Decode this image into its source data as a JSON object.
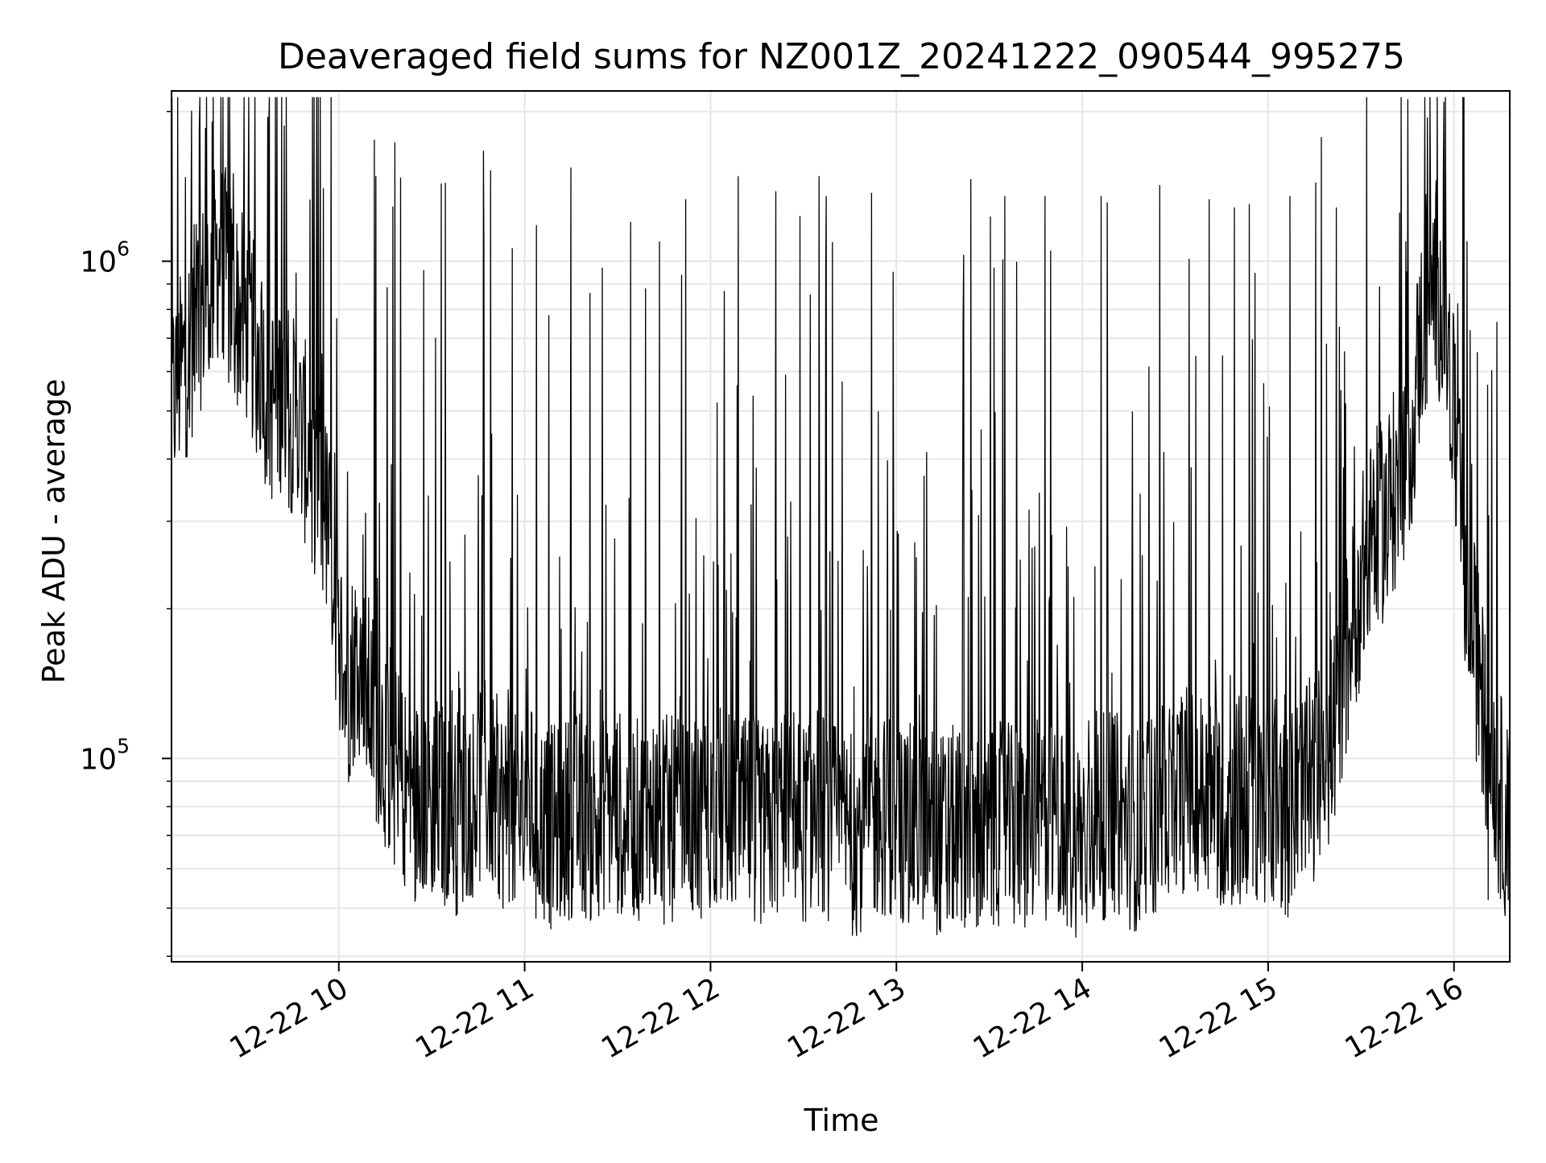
{
  "chart_data": {
    "type": "line",
    "title": "Deaveraged field sums for NZ001Z_20241222_090544_995275",
    "xlabel": "Time",
    "ylabel": "Peak ADU - average",
    "x_range": [
      "2024-12-22 09:06",
      "2024-12-22 16:18"
    ],
    "y_scale": "log",
    "y_range": [
      39000,
      2200000
    ],
    "x_ticks": [
      {
        "value": "2024-12-22 10:00",
        "label": "12-22 10"
      },
      {
        "value": "2024-12-22 11:00",
        "label": "12-22 11"
      },
      {
        "value": "2024-12-22 12:00",
        "label": "12-22 12"
      },
      {
        "value": "2024-12-22 13:00",
        "label": "12-22 13"
      },
      {
        "value": "2024-12-22 14:00",
        "label": "12-22 14"
      },
      {
        "value": "2024-12-22 15:00",
        "label": "12-22 15"
      },
      {
        "value": "2024-12-22 16:00",
        "label": "12-22 16"
      }
    ],
    "y_ticks": [
      {
        "value": 100000,
        "base": "10",
        "exp": "5"
      },
      {
        "value": 1000000,
        "base": "10",
        "exp": "6"
      }
    ],
    "grid": true,
    "line_color": "#000000",
    "grid_color": "#e6e6e6",
    "series": [
      {
        "x": [
          "2024-12-22 09:06",
          "2024-12-22 09:10",
          "2024-12-22 09:14",
          "2024-12-22 09:18",
          "2024-12-22 09:22",
          "2024-12-22 09:26",
          "2024-12-22 09:30",
          "2024-12-22 09:34",
          "2024-12-22 09:38",
          "2024-12-22 09:42",
          "2024-12-22 09:46",
          "2024-12-22 09:50",
          "2024-12-22 09:54",
          "2024-12-22 09:58",
          "2024-12-22 10:02",
          "2024-12-22 10:06",
          "2024-12-22 10:10",
          "2024-12-22 10:14",
          "2024-12-22 10:18",
          "2024-12-22 10:22",
          "2024-12-22 10:26",
          "2024-12-22 10:30",
          "2024-12-22 10:34",
          "2024-12-22 10:38",
          "2024-12-22 10:42",
          "2024-12-22 10:46",
          "2024-12-22 10:50",
          "2024-12-22 10:54",
          "2024-12-22 10:58",
          "2024-12-22 11:02",
          "2024-12-22 11:06",
          "2024-12-22 11:10",
          "2024-12-22 11:14",
          "2024-12-22 11:18",
          "2024-12-22 11:22",
          "2024-12-22 11:26",
          "2024-12-22 11:30",
          "2024-12-22 11:34",
          "2024-12-22 11:38",
          "2024-12-22 11:42",
          "2024-12-22 11:46",
          "2024-12-22 11:50",
          "2024-12-22 11:54",
          "2024-12-22 11:58",
          "2024-12-22 12:02",
          "2024-12-22 12:06",
          "2024-12-22 12:10",
          "2024-12-22 12:14",
          "2024-12-22 12:18",
          "2024-12-22 12:22",
          "2024-12-22 12:26",
          "2024-12-22 12:30",
          "2024-12-22 12:34",
          "2024-12-22 12:38",
          "2024-12-22 12:42",
          "2024-12-22 12:46",
          "2024-12-22 12:50",
          "2024-12-22 12:54",
          "2024-12-22 12:58",
          "2024-12-22 13:02",
          "2024-12-22 13:06",
          "2024-12-22 13:10",
          "2024-12-22 13:14",
          "2024-12-22 13:18",
          "2024-12-22 13:22",
          "2024-12-22 13:26",
          "2024-12-22 13:30",
          "2024-12-22 13:34",
          "2024-12-22 13:38",
          "2024-12-22 13:42",
          "2024-12-22 13:46",
          "2024-12-22 13:50",
          "2024-12-22 13:54",
          "2024-12-22 13:58",
          "2024-12-22 14:02",
          "2024-12-22 14:06",
          "2024-12-22 14:10",
          "2024-12-22 14:14",
          "2024-12-22 14:18",
          "2024-12-22 14:22",
          "2024-12-22 14:26",
          "2024-12-22 14:30",
          "2024-12-22 14:34",
          "2024-12-22 14:38",
          "2024-12-22 14:42",
          "2024-12-22 14:46",
          "2024-12-22 14:50",
          "2024-12-22 14:54",
          "2024-12-22 14:58",
          "2024-12-22 15:02",
          "2024-12-22 15:06",
          "2024-12-22 15:10",
          "2024-12-22 15:14",
          "2024-12-22 15:18",
          "2024-12-22 15:22",
          "2024-12-22 15:26",
          "2024-12-22 15:30",
          "2024-12-22 15:34",
          "2024-12-22 15:38",
          "2024-12-22 15:42",
          "2024-12-22 15:46",
          "2024-12-22 15:50",
          "2024-12-22 15:54",
          "2024-12-22 15:58",
          "2024-12-22 16:02",
          "2024-12-22 16:06",
          "2024-12-22 16:10",
          "2024-12-22 16:14",
          "2024-12-22 16:18"
        ],
        "y": [
          520000,
          620000,
          760000,
          900000,
          1050000,
          820000,
          760000,
          640000,
          520000,
          560000,
          470000,
          420000,
          360000,
          250000,
          140000,
          160000,
          130000,
          110000,
          95000,
          88000,
          82000,
          86000,
          80000,
          78000,
          84000,
          90000,
          85000,
          78000,
          76000,
          80000,
          74000,
          72000,
          76000,
          78000,
          74000,
          80000,
          78000,
          76000,
          74000,
          78000,
          76000,
          74000,
          72000,
          76000,
          80000,
          78000,
          74000,
          76000,
          72000,
          78000,
          76000,
          74000,
          80000,
          76000,
          72000,
          70000,
          74000,
          76000,
          78000,
          74000,
          72000,
          76000,
          70000,
          72000,
          74000,
          72000,
          70000,
          74000,
          72000,
          70000,
          76000,
          74000,
          72000,
          70000,
          72000,
          76000,
          78000,
          74000,
          72000,
          76000,
          80000,
          84000,
          88000,
          86000,
          82000,
          80000,
          84000,
          86000,
          82000,
          80000,
          78000,
          84000,
          88000,
          100000,
          120000,
          170000,
          230000,
          280000,
          310000,
          360000,
          460000,
          760000,
          930000,
          680000,
          320000,
          180000,
          120000,
          90000,
          70000
        ],
        "spikes": [
          {
            "x": "2024-12-22 09:15",
            "y": 1850000
          },
          {
            "x": "2024-12-22 09:17",
            "y": 1850000
          },
          {
            "x": "2024-12-22 09:26",
            "y": 1500000
          },
          {
            "x": "2024-12-22 09:55",
            "y": 1400000
          },
          {
            "x": "2024-12-22 10:12",
            "y": 1480000
          },
          {
            "x": "2024-12-22 10:20",
            "y": 1470000
          },
          {
            "x": "2024-12-22 10:33",
            "y": 1430000
          },
          {
            "x": "2024-12-22 10:49",
            "y": 1520000
          },
          {
            "x": "2024-12-22 10:56",
            "y": 1060000
          },
          {
            "x": "2024-12-22 11:15",
            "y": 1540000
          },
          {
            "x": "2024-12-22 11:39",
            "y": 880000
          },
          {
            "x": "2024-12-22 11:52",
            "y": 1330000
          },
          {
            "x": "2024-12-22 12:09",
            "y": 1480000
          },
          {
            "x": "2024-12-22 12:21",
            "y": 1380000
          },
          {
            "x": "2024-12-22 12:35",
            "y": 1480000
          },
          {
            "x": "2024-12-22 12:52",
            "y": 1370000
          },
          {
            "x": "2024-12-22 12:59",
            "y": 950000
          },
          {
            "x": "2024-12-22 13:24",
            "y": 1460000
          },
          {
            "x": "2024-12-22 13:35",
            "y": 1350000
          },
          {
            "x": "2024-12-22 13:48",
            "y": 1350000
          },
          {
            "x": "2024-12-22 14:06",
            "y": 1350000
          },
          {
            "x": "2024-12-22 14:25",
            "y": 1420000
          },
          {
            "x": "2024-12-22 14:41",
            "y": 1330000
          },
          {
            "x": "2024-12-22 14:54",
            "y": 1300000
          },
          {
            "x": "2024-12-22 15:07",
            "y": 1350000
          },
          {
            "x": "2024-12-22 15:22",
            "y": 1280000
          }
        ],
        "dips": [
          {
            "x": "2024-12-22 10:30",
            "y": 54000
          },
          {
            "x": "2024-12-22 10:42",
            "y": 53000
          },
          {
            "x": "2024-12-22 12:58",
            "y": 49000
          },
          {
            "x": "2024-12-22 13:54",
            "y": 48500
          },
          {
            "x": "2024-12-22 14:51",
            "y": 51000
          },
          {
            "x": "2024-12-22 16:11",
            "y": 52000
          },
          {
            "x": "2024-12-22 16:18",
            "y": 52000
          }
        ]
      }
    ]
  }
}
